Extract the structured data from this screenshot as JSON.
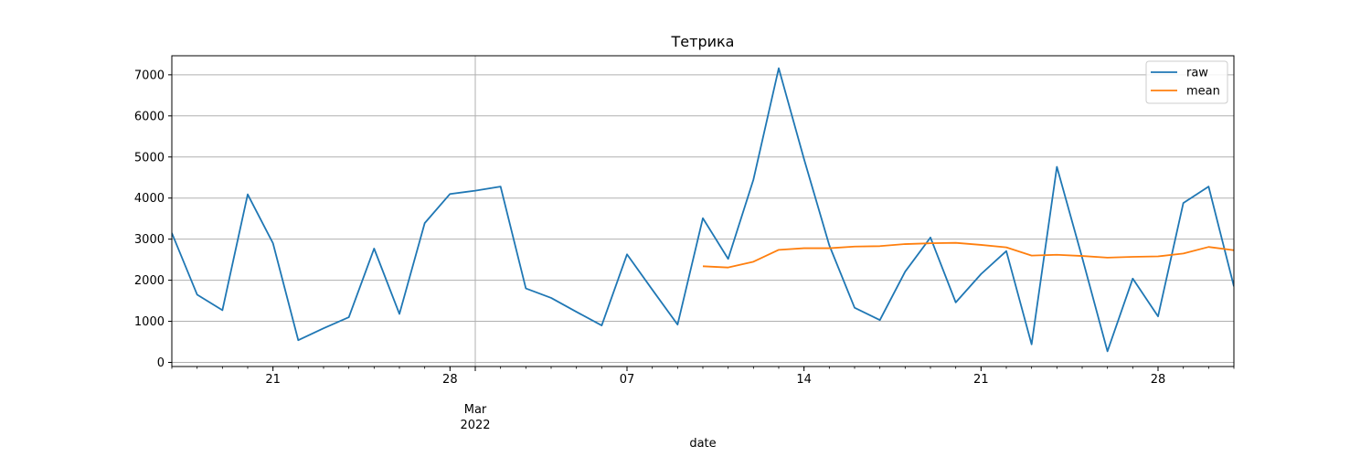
{
  "chart_data": {
    "type": "line",
    "title": "Тетрика",
    "xlabel": "date",
    "ylabel": "",
    "ylim": [
      0,
      7500
    ],
    "yticks": [
      0,
      1000,
      2000,
      3000,
      4000,
      5000,
      6000,
      7000
    ],
    "xrange": [
      "2022-02-17",
      "2022-03-31"
    ],
    "grid": true,
    "legend": "upper right",
    "x_ticks": [
      {
        "date": "2022-02-21",
        "label": "21"
      },
      {
        "date": "2022-02-28",
        "label": "28"
      },
      {
        "date": "2022-03-01",
        "label": "Mar",
        "sublabel": "2022"
      },
      {
        "date": "2022-03-07",
        "label": "07"
      },
      {
        "date": "2022-03-14",
        "label": "14"
      },
      {
        "date": "2022-03-21",
        "label": "21"
      },
      {
        "date": "2022-03-28",
        "label": "28"
      }
    ],
    "x": [
      "2022-02-17",
      "2022-02-18",
      "2022-02-19",
      "2022-02-20",
      "2022-02-21",
      "2022-02-22",
      "2022-02-23",
      "2022-02-24",
      "2022-02-25",
      "2022-02-26",
      "2022-02-27",
      "2022-02-28",
      "2022-03-01",
      "2022-03-02",
      "2022-03-03",
      "2022-03-04",
      "2022-03-05",
      "2022-03-06",
      "2022-03-07",
      "2022-03-08",
      "2022-03-09",
      "2022-03-10",
      "2022-03-11",
      "2022-03-12",
      "2022-03-13",
      "2022-03-14",
      "2022-03-15",
      "2022-03-16",
      "2022-03-17",
      "2022-03-18",
      "2022-03-19",
      "2022-03-20",
      "2022-03-21",
      "2022-03-22",
      "2022-03-23",
      "2022-03-24",
      "2022-03-25",
      "2022-03-26",
      "2022-03-27",
      "2022-03-28",
      "2022-03-29",
      "2022-03-30",
      "2022-03-31"
    ],
    "series": [
      {
        "name": "raw",
        "color": "#1f77b4",
        "values": [
          3150,
          1650,
          1270,
          4090,
          2900,
          540,
          830,
          1100,
          2770,
          1180,
          3390,
          4100,
          4180,
          4280,
          1800,
          1570,
          1230,
          900,
          2630,
          1770,
          920,
          3510,
          2520,
          4450,
          7160,
          4950,
          2850,
          1330,
          1030,
          2210,
          3040,
          1460,
          2150,
          2710,
          440,
          4760,
          2550,
          270,
          2040,
          1120,
          3880,
          4280,
          1850
        ]
      },
      {
        "name": "mean",
        "color": "#ff7f0e",
        "values": [
          null,
          null,
          null,
          null,
          null,
          null,
          null,
          null,
          null,
          null,
          null,
          null,
          null,
          null,
          null,
          null,
          null,
          null,
          null,
          null,
          null,
          2340,
          2310,
          2450,
          2740,
          2780,
          2780,
          2820,
          2830,
          2880,
          2900,
          2910,
          2860,
          2800,
          2600,
          2620,
          2590,
          2550,
          2570,
          2580,
          2650,
          2810,
          2730
        ]
      }
    ]
  }
}
